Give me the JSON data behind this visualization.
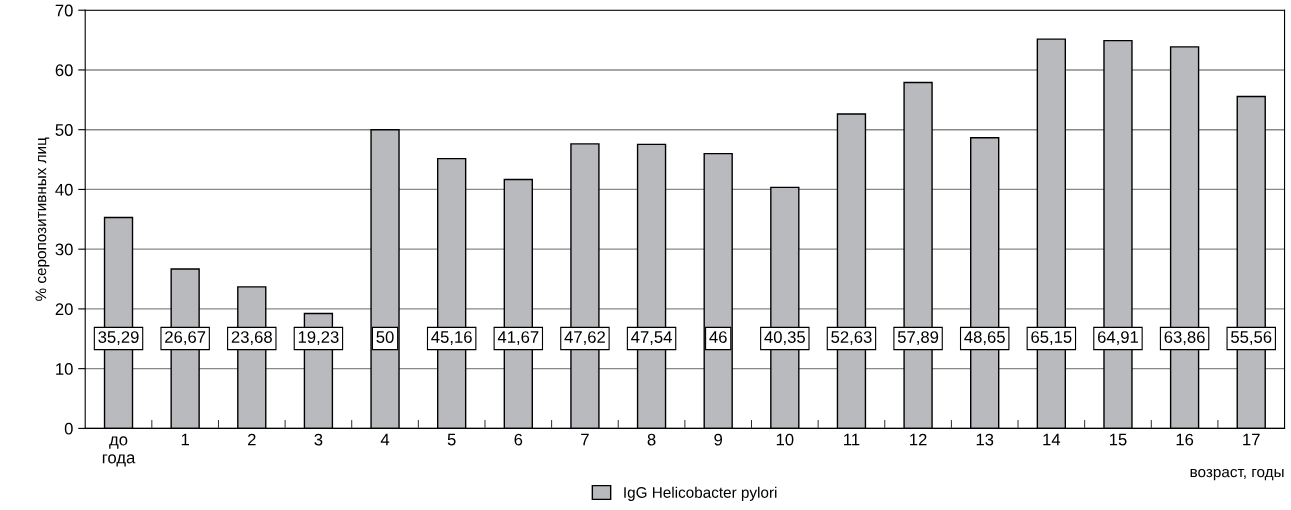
{
  "chart_data": {
    "type": "bar",
    "categories": [
      "до\nгода",
      "1",
      "2",
      "3",
      "4",
      "5",
      "6",
      "7",
      "8",
      "9",
      "10",
      "11",
      "12",
      "13",
      "14",
      "15",
      "16",
      "17"
    ],
    "series": [
      {
        "name": "IgG Helicobacter pylori",
        "color": "#b9babe",
        "values": [
          35.29,
          26.67,
          23.68,
          19.23,
          50,
          45.16,
          41.67,
          47.62,
          47.54,
          46,
          40.35,
          52.63,
          57.89,
          48.65,
          65.15,
          64.91,
          63.86,
          55.56
        ],
        "value_labels": [
          "35,29",
          "26,67",
          "23,68",
          "19,23",
          "50",
          "45,16",
          "41,67",
          "47,62",
          "47,54",
          "46",
          "40,35",
          "52,63",
          "57,89",
          "48,65",
          "65,15",
          "64,91",
          "63,86",
          "55,56"
        ]
      }
    ],
    "xlabel": "возраст, годы",
    "ylabel": "% серопозитивных лиц",
    "ylim": [
      0,
      70
    ],
    "yticks": [
      0,
      10,
      20,
      30,
      40,
      50,
      60,
      70
    ],
    "grid": "y",
    "legend": "bottom"
  }
}
